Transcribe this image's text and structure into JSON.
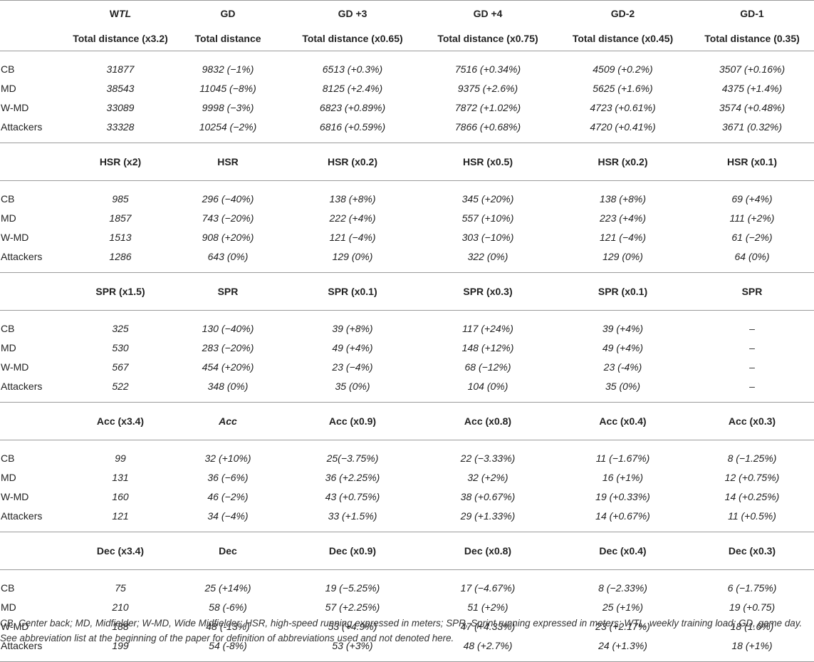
{
  "header": {
    "columns": [
      {
        "w": "W",
        "tl": "TL"
      },
      {
        "text": "GD"
      },
      {
        "text": "GD +3"
      },
      {
        "text": "GD +4"
      },
      {
        "text": "GD-2"
      },
      {
        "text": "GD-1"
      }
    ]
  },
  "sections": [
    {
      "metrics": [
        "Total distance (x3.2)",
        "Total distance",
        "Total distance (x0.65)",
        "Total distance (x0.75)",
        "Total distance (x0.45)",
        "Total distance (0.35)"
      ],
      "rows": [
        {
          "label": "CB",
          "values": [
            "31877",
            "9832 (−1%)",
            "6513 (+0.3%)",
            "7516 (+0.34%)",
            "4509 (+0.2%)",
            "3507 (+0.16%)"
          ]
        },
        {
          "label": "MD",
          "values": [
            "38543",
            "11045 (−8%)",
            "8125 (+2.4%)",
            "9375 (+2.6%)",
            "5625 (+1.6%)",
            "4375 (+1.4%)"
          ]
        },
        {
          "label": "W-MD",
          "values": [
            "33089",
            "9998 (−3%)",
            "6823 (+0.89%)",
            "7872 (+1.02%)",
            "4723 (+0.61%)",
            "3574 (+0.48%)"
          ]
        },
        {
          "label": "Attackers",
          "values": [
            "33328",
            "10254 (−2%)",
            "6816 (+0.59%)",
            "7866 (+0.68%)",
            "4720 (+0.41%)",
            "3671 (0.32%)"
          ]
        }
      ]
    },
    {
      "metrics": [
        "HSR (x2)",
        "HSR",
        "HSR (x0.2)",
        "HSR (x0.5)",
        "HSR (x0.2)",
        "HSR (x0.1)"
      ],
      "rows": [
        {
          "label": "CB",
          "values": [
            "985",
            "296 (−40%)",
            "138 (+8%)",
            "345 (+20%)",
            "138 (+8%)",
            "69 (+4%)"
          ]
        },
        {
          "label": "MD",
          "values": [
            "1857",
            "743 (−20%)",
            "222 (+4%)",
            "557 (+10%)",
            "223 (+4%)",
            "111 (+2%)"
          ]
        },
        {
          "label": "W-MD",
          "values": [
            "1513",
            "908 (+20%)",
            "121 (−4%)",
            "303 (−10%)",
            "121 (−4%)",
            "61 (−2%)"
          ]
        },
        {
          "label": "Attackers",
          "values": [
            "1286",
            "643 (0%)",
            "129 (0%)",
            "322 (0%)",
            "129 (0%)",
            "64 (0%)"
          ]
        }
      ]
    },
    {
      "metrics": [
        "SPR (x1.5)",
        "SPR",
        "SPR (x0.1)",
        "SPR (x0.3)",
        "SPR (x0.1)",
        "SPR"
      ],
      "rows": [
        {
          "label": "CB",
          "values": [
            "325",
            "130 (−40%)",
            "39 (+8%)",
            "117 (+24%)",
            "39 (+4%)",
            "–"
          ]
        },
        {
          "label": "MD",
          "values": [
            "530",
            "283 (−20%)",
            "49 (+4%)",
            "148 (+12%)",
            "49 (+4%)",
            "–"
          ]
        },
        {
          "label": "W-MD",
          "values": [
            "567",
            "454 (+20%)",
            "23 (−4%)",
            "68 (−12%)",
            "23 (-4%)",
            "–"
          ]
        },
        {
          "label": "Attackers",
          "values": [
            "522",
            "348 (0%)",
            "35 (0%)",
            "104 (0%)",
            "35 (0%)",
            "–"
          ]
        }
      ]
    },
    {
      "metrics": [
        "Acc (x3.4)",
        "Acc",
        "Acc (x0.9)",
        "Acc (x0.8)",
        "Acc (x0.4)",
        "Acc (x0.3)"
      ],
      "rows": [
        {
          "label": "CB",
          "values": [
            "99",
            "32 (+10%)",
            "25(−3.75%)",
            "22 (−3.33%)",
            "11 (−1.67%)",
            "8 (−1.25%)"
          ]
        },
        {
          "label": "MD",
          "values": [
            "131",
            "36 (−6%)",
            "36 (+2.25%)",
            "32 (+2%)",
            "16 (+1%)",
            "12 (+0.75%)"
          ]
        },
        {
          "label": "W-MD",
          "values": [
            "160",
            "46 (−2%)",
            "43 (+0.75%)",
            "38 (+0.67%)",
            "19 (+0.33%)",
            "14 (+0.25%)"
          ]
        },
        {
          "label": "Attackers",
          "values": [
            "121",
            "34 (−4%)",
            "33 (+1.5%)",
            "29 (+1.33%)",
            "14 (+0.67%)",
            "11 (+0.5%)"
          ]
        }
      ]
    },
    {
      "metrics": [
        "Dec (x3.4)",
        "Dec",
        "Dec (x0.9)",
        "Dec (x0.8)",
        "Dec (x0.4)",
        "Dec (x0.3)"
      ],
      "rows": [
        {
          "label": "CB",
          "values": [
            "75",
            "25 (+14%)",
            "19 (−5.25%)",
            "17 (−4.67%)",
            "8 (−2.33%)",
            "6 (−1.75%)"
          ]
        },
        {
          "label": "MD",
          "values": [
            "210",
            "58 (-6%)",
            "57 (+2.25%)",
            "51 (+2%)",
            "25 (+1%)",
            "19 (+0.75)"
          ]
        },
        {
          "label": "W-MD",
          "values": [
            "188",
            "48 (-13%)",
            "53 (+4.9%)",
            "47 (+4.33%)",
            "23 (+2.17%)",
            "18 (1.6%)"
          ]
        },
        {
          "label": "Attackers",
          "values": [
            "199",
            "54 (-8%)",
            "53 (+3%)",
            "48 (+2.7%)",
            "24 (+1.3%)",
            "18 (+1%)"
          ]
        }
      ]
    }
  ],
  "footnote": "CB, Center back; MD, Midfielder; W-MD, Wide Midfielder; HSR, high-speed running expressed in meters; SPR, Sprint running expressed in meters; WTL, weekly training load; GD, game day. See abbreviation list at the beginning of the paper for definition of abbreviations used and not denoted here."
}
